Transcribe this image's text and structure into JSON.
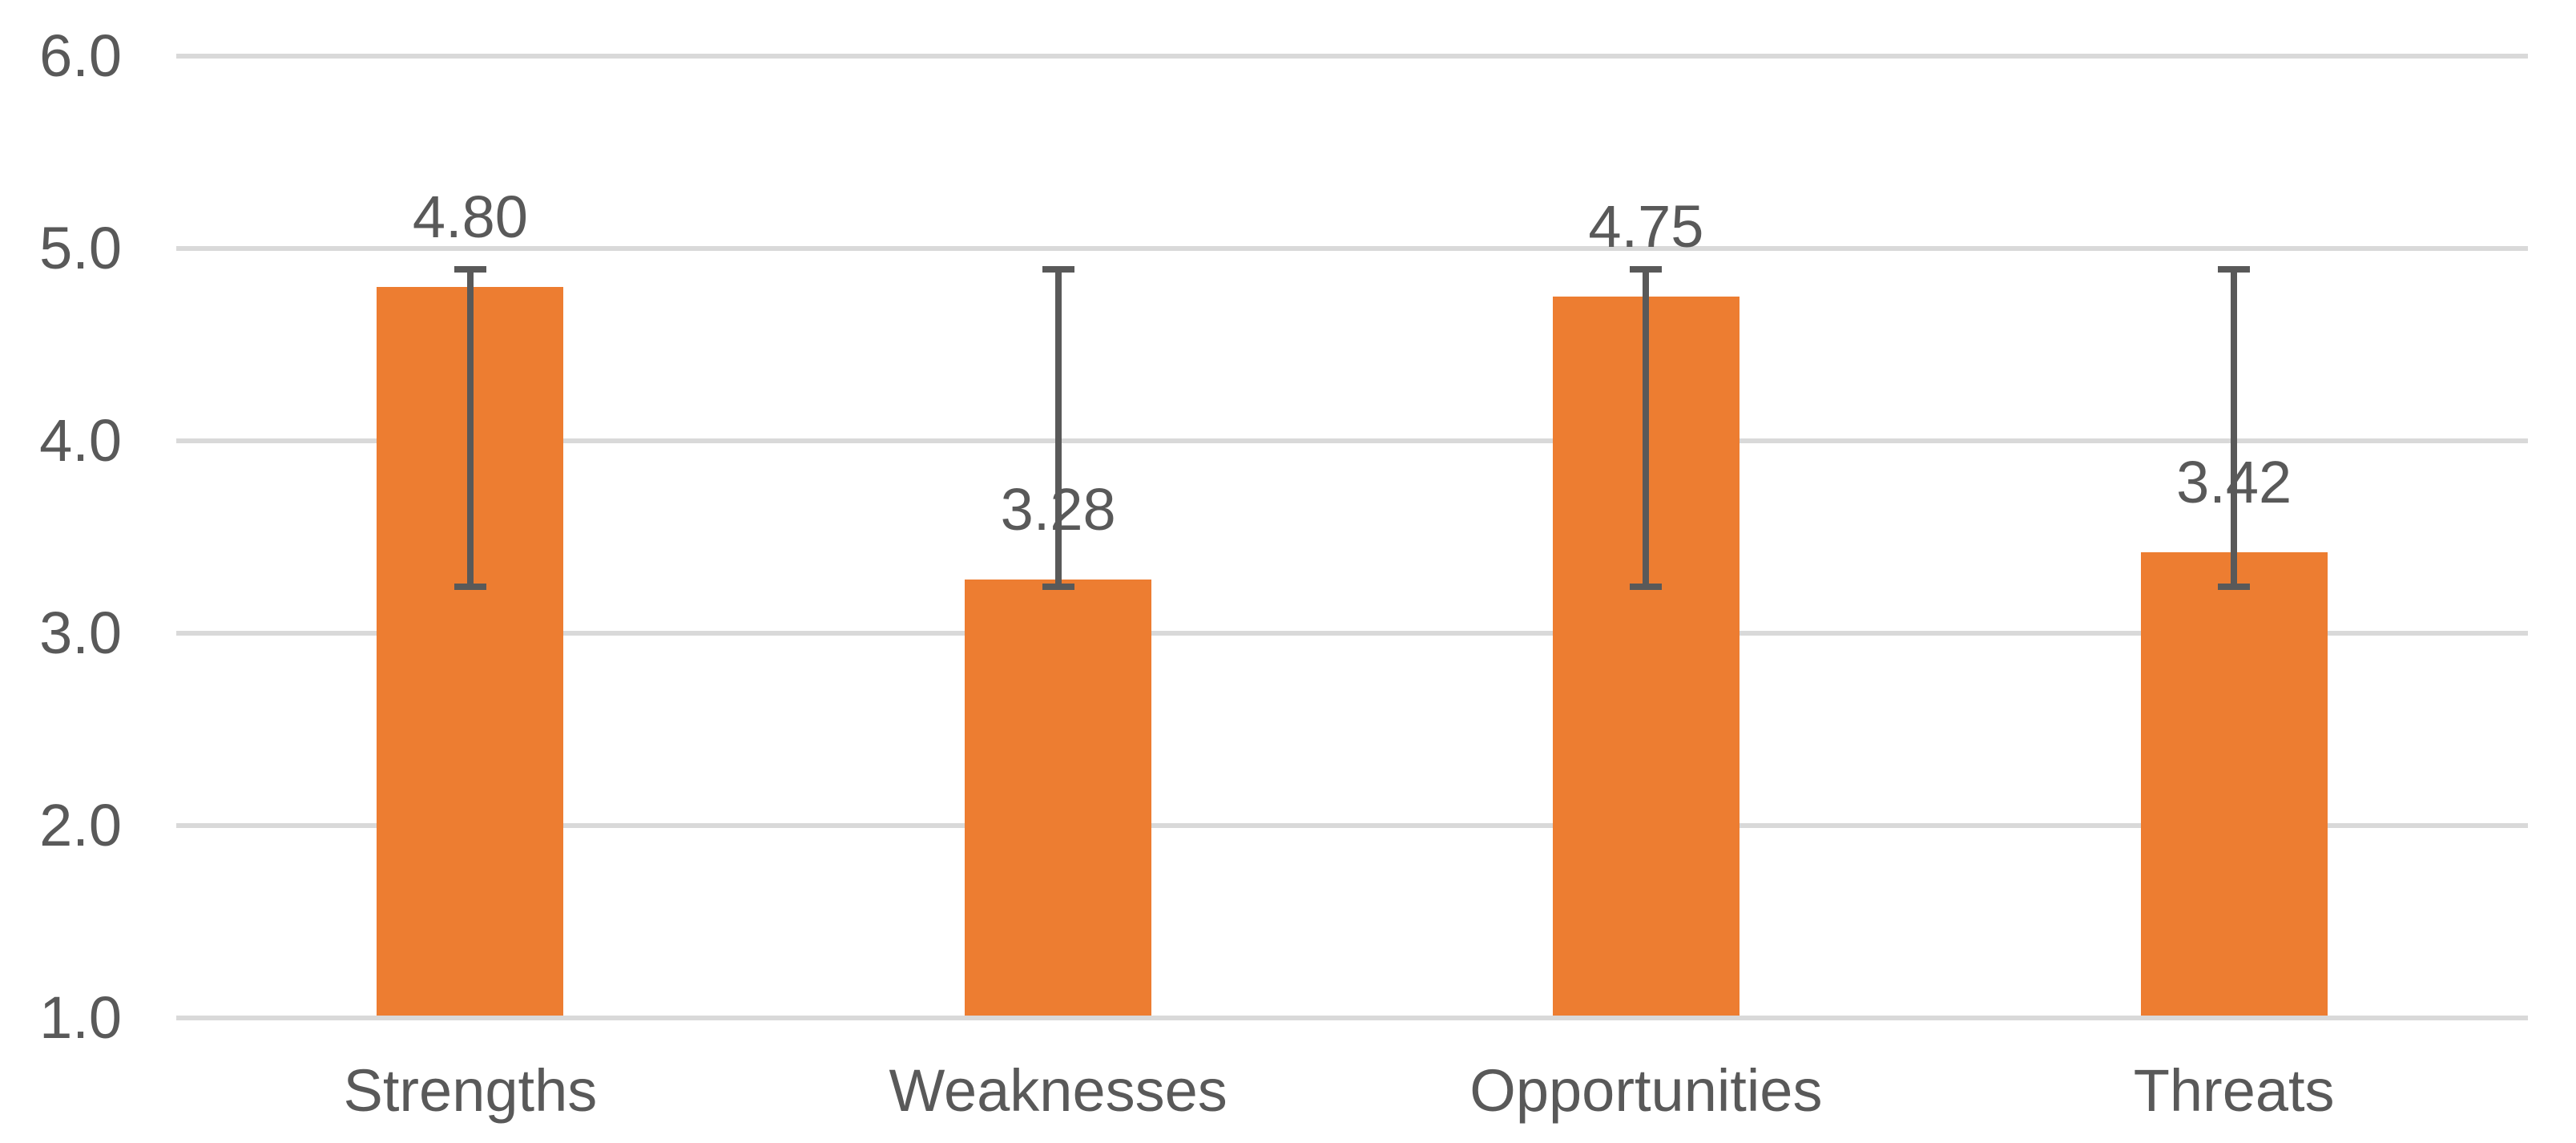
{
  "chart_data": {
    "type": "bar",
    "title": "",
    "xlabel": "",
    "ylabel": "",
    "categories": [
      "Strengths",
      "Weaknesses",
      "Opportunities",
      "Threats"
    ],
    "values": [
      4.8,
      3.28,
      4.75,
      3.42
    ],
    "data_labels": [
      "4.80",
      "3.28",
      "4.75",
      "3.42"
    ],
    "error_bars": [
      {
        "low": 3.24,
        "high": 4.89
      },
      {
        "low": 3.24,
        "high": 4.89
      },
      {
        "low": 3.24,
        "high": 4.89
      },
      {
        "low": 3.24,
        "high": 4.89
      }
    ],
    "ylim": [
      1.0,
      6.0
    ],
    "y_ticks": [
      {
        "value": 6.0,
        "label": "6.0"
      },
      {
        "value": 5.0,
        "label": "5.0"
      },
      {
        "value": 4.0,
        "label": "4.0"
      },
      {
        "value": 3.0,
        "label": "3.0"
      },
      {
        "value": 2.0,
        "label": "2.0"
      },
      {
        "value": 1.0,
        "label": "1.0"
      }
    ],
    "grid": true,
    "legend": false,
    "colors": {
      "bar": "#ED7D31",
      "error_bar": "#595959",
      "gridline": "#D9D9D9",
      "axis_text": "#595959",
      "data_label_text": "#595959",
      "background": "#FFFFFF"
    }
  }
}
